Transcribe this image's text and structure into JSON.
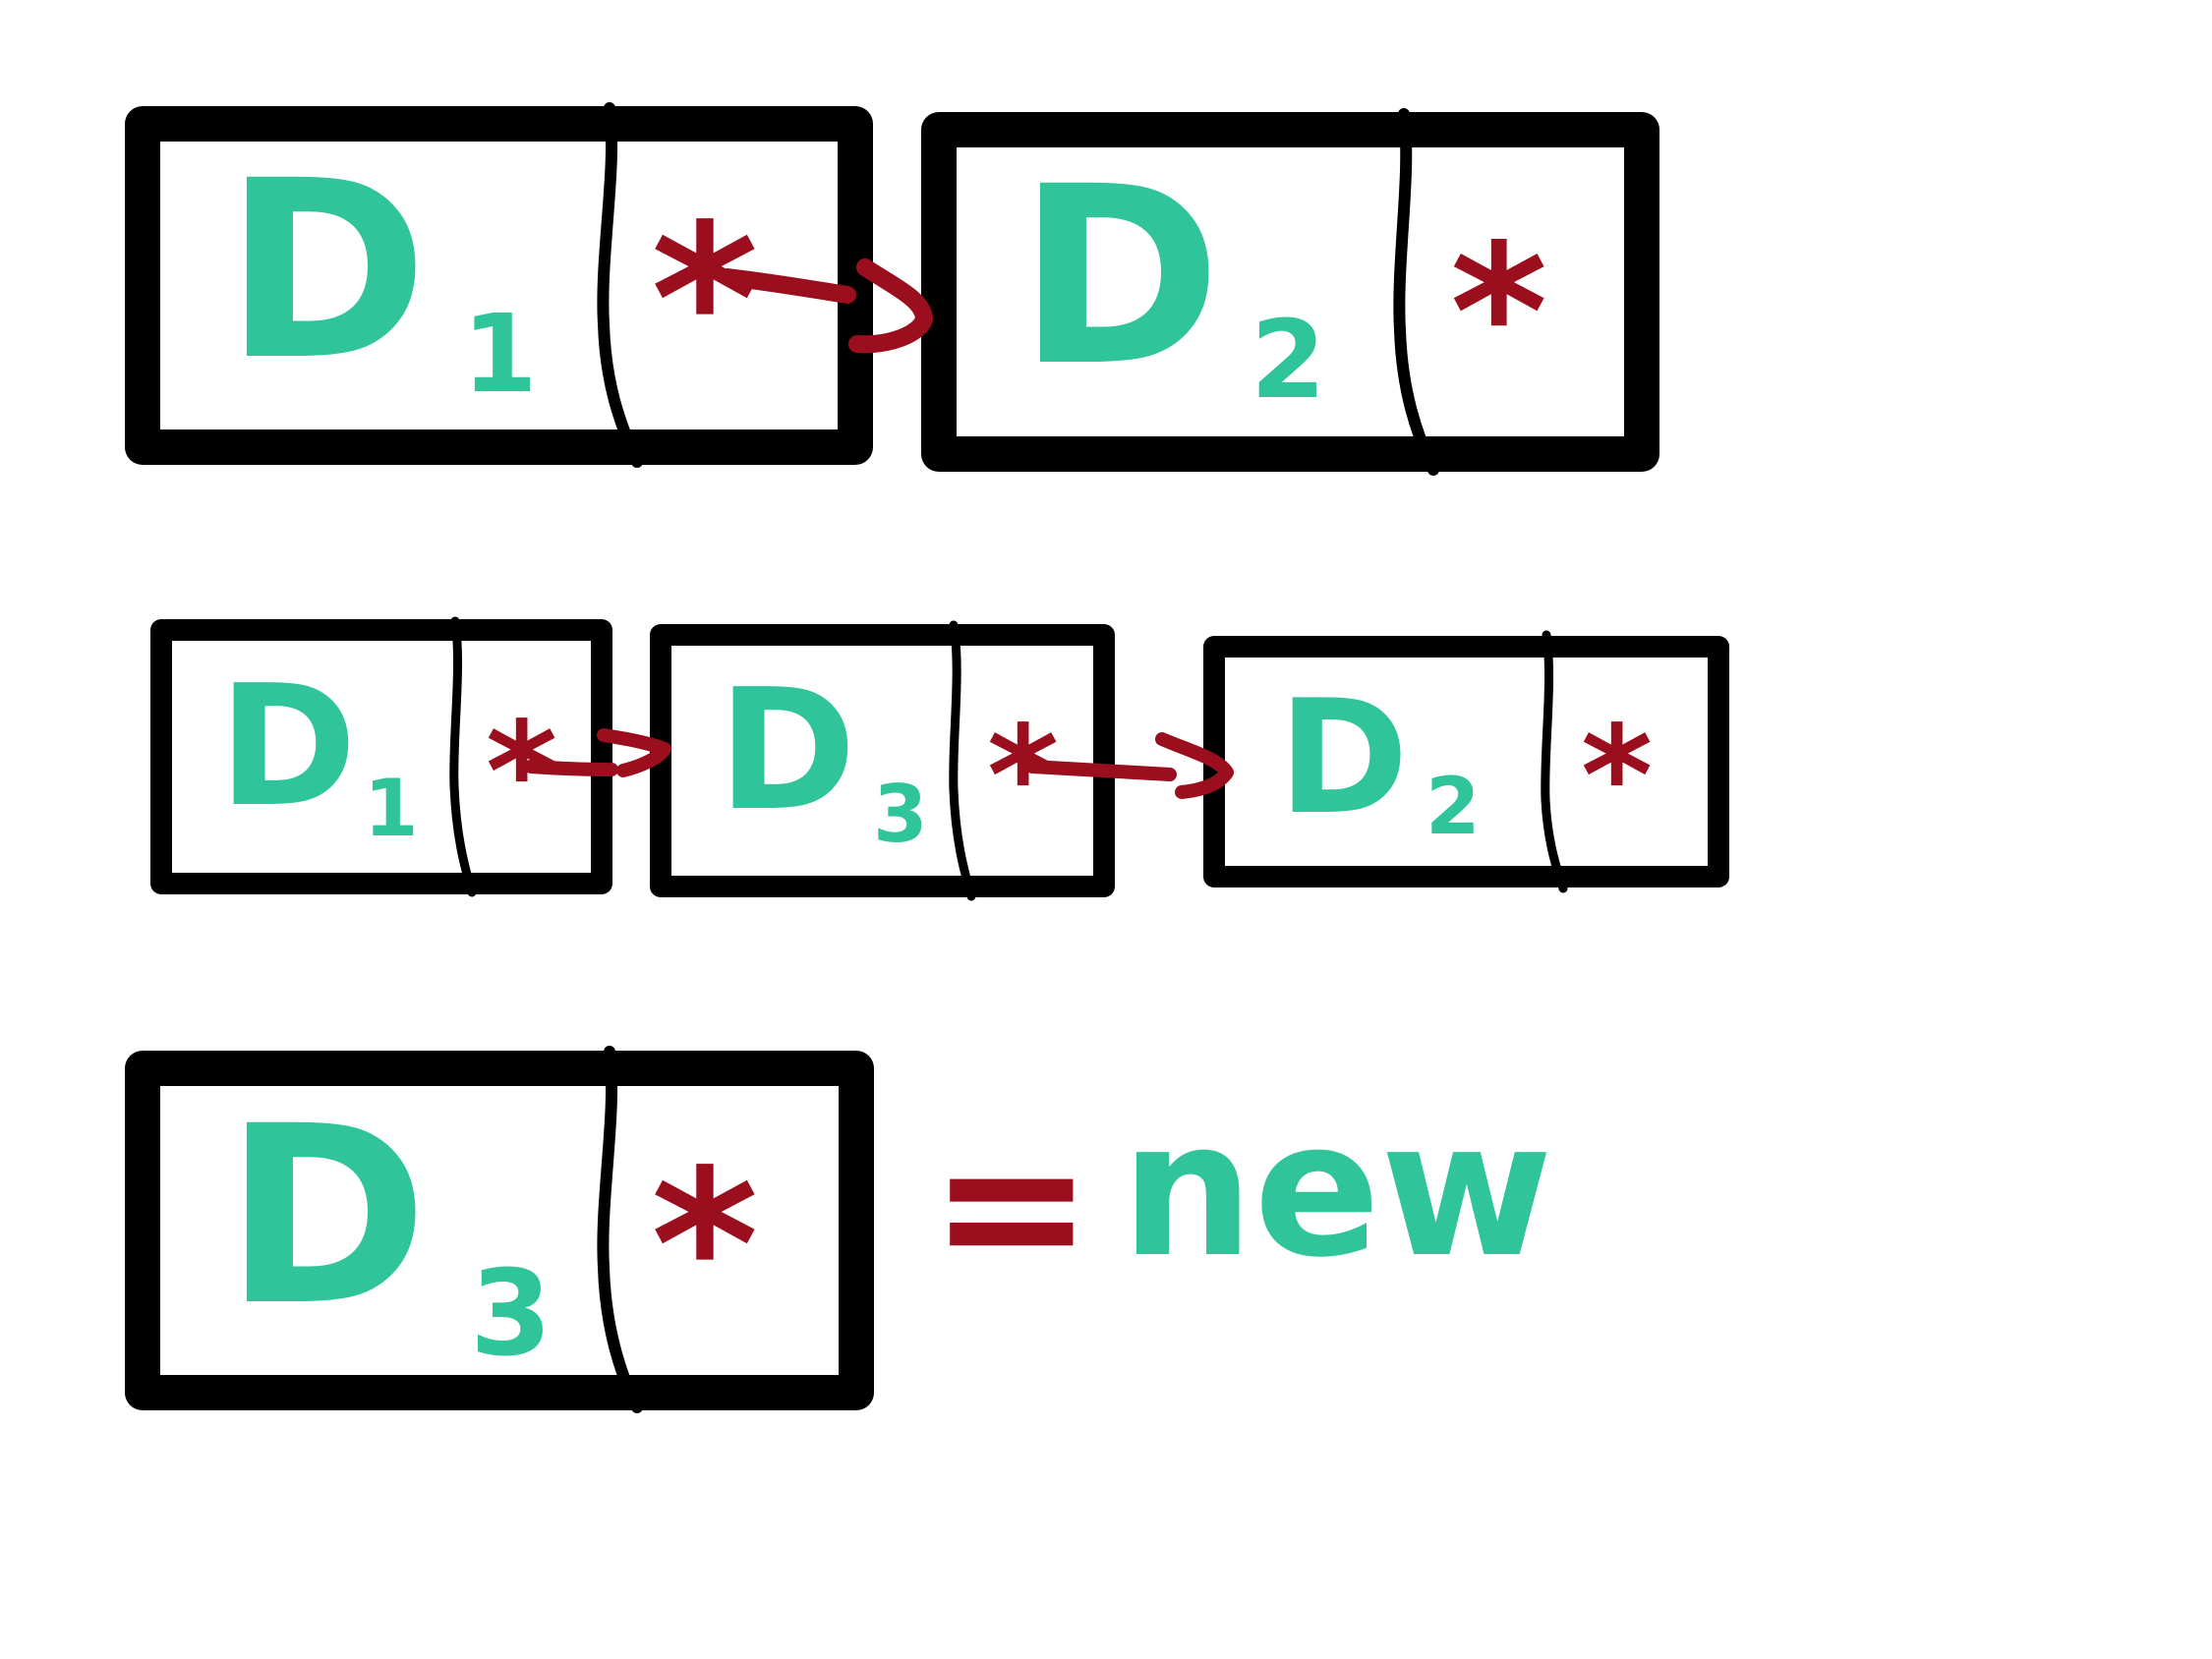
{
  "colors": {
    "box": "#000000",
    "data": "#2fc49a",
    "pointer": "#9b0e1e",
    "background": "#ffffff"
  },
  "row1": {
    "node1": {
      "letter": "D",
      "sub": "1",
      "pointer": "*"
    },
    "node2": {
      "letter": "D",
      "sub": "2",
      "pointer": "*"
    }
  },
  "row2": {
    "node1": {
      "letter": "D",
      "sub": "1",
      "pointer": "*"
    },
    "node2": {
      "letter": "D",
      "sub": "3",
      "pointer": "*"
    },
    "node3": {
      "letter": "D",
      "sub": "2",
      "pointer": "*"
    }
  },
  "row3": {
    "node1": {
      "letter": "D",
      "sub": "3",
      "pointer": "*"
    },
    "equals": "=",
    "label": "new"
  }
}
